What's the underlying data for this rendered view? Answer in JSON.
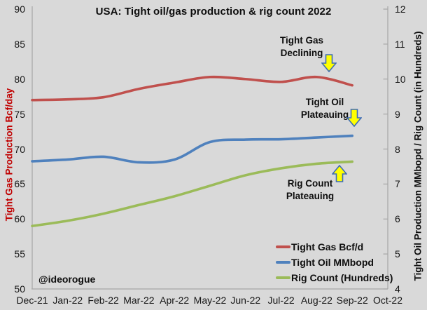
{
  "title": "USA: Tight oil/gas production & rig count 2022",
  "watermark": "@ideorogue",
  "colors": {
    "background": "#d9d9d9",
    "axis_line": "#a6a6a6",
    "text": "#0d0d0d",
    "left_axis_title": "#c00000",
    "tight_gas": "#c0504d",
    "tight_oil": "#4f81bd",
    "rig_count": "#9bbb59",
    "arrow_fill": "#ffff00",
    "arrow_stroke": "#3d6cb4"
  },
  "chart_data": {
    "type": "line",
    "smooth": true,
    "grid": false,
    "title": "USA: Tight oil/gas production & rig count 2022",
    "x_categories": [
      "Dec-21",
      "Jan-22",
      "Feb-22",
      "Mar-22",
      "Apr-22",
      "May-22",
      "Jun-22",
      "Jul-22",
      "Aug-22",
      "Sep-22",
      "Oct-22"
    ],
    "left_axis": {
      "label": "Tight Gas Production Bcf/day",
      "min": 50,
      "max": 90,
      "step": 5,
      "ticks": [
        90,
        85,
        80,
        75,
        70,
        65,
        60,
        55,
        50
      ]
    },
    "right_axis": {
      "label": "Tight Oil Production MMbopd / Rig Count (in Hundreds)",
      "min": 4,
      "max": 12,
      "step": 1,
      "ticks": [
        12,
        11,
        10,
        9,
        8,
        7,
        6,
        5,
        4
      ]
    },
    "series": [
      {
        "name": "Tight Gas Bcf/d",
        "axis": "left",
        "color": "#c0504d",
        "x": [
          "Dec-21",
          "Jan-22",
          "Feb-22",
          "Mar-22",
          "Apr-22",
          "May-22",
          "Jun-22",
          "Jul-22",
          "Aug-22",
          "Sep-22"
        ],
        "values": [
          77.0,
          77.1,
          77.4,
          78.6,
          79.5,
          80.3,
          80.0,
          79.6,
          80.3,
          79.1
        ]
      },
      {
        "name": "Tight Oil MMbopd",
        "axis": "right",
        "color": "#4f81bd",
        "x": [
          "Dec-21",
          "Jan-22",
          "Feb-22",
          "Mar-22",
          "Apr-22",
          "May-22",
          "Jun-22",
          "Jul-22",
          "Aug-22",
          "Sep-22"
        ],
        "values": [
          7.65,
          7.7,
          7.78,
          7.62,
          7.7,
          8.2,
          8.27,
          8.28,
          8.33,
          8.38
        ]
      },
      {
        "name": "Rig Count (Hundreds)",
        "axis": "right",
        "color": "#9bbb59",
        "x": [
          "Dec-21",
          "Jan-22",
          "Feb-22",
          "Mar-22",
          "Apr-22",
          "May-22",
          "Jun-22",
          "Jul-22",
          "Aug-22",
          "Sep-22"
        ],
        "values": [
          5.8,
          5.95,
          6.15,
          6.4,
          6.65,
          6.95,
          7.25,
          7.45,
          7.58,
          7.64
        ]
      }
    ],
    "annotations": [
      {
        "line1": "Tight Gas",
        "line2": "Declining",
        "arrow": "down"
      },
      {
        "line1": "Tight Oil",
        "line2": "Plateauing",
        "arrow": "down"
      },
      {
        "line1": "Rig Count",
        "line2": "Plateauing",
        "arrow": "up"
      }
    ],
    "legend_position": "inside-bottom-right"
  }
}
